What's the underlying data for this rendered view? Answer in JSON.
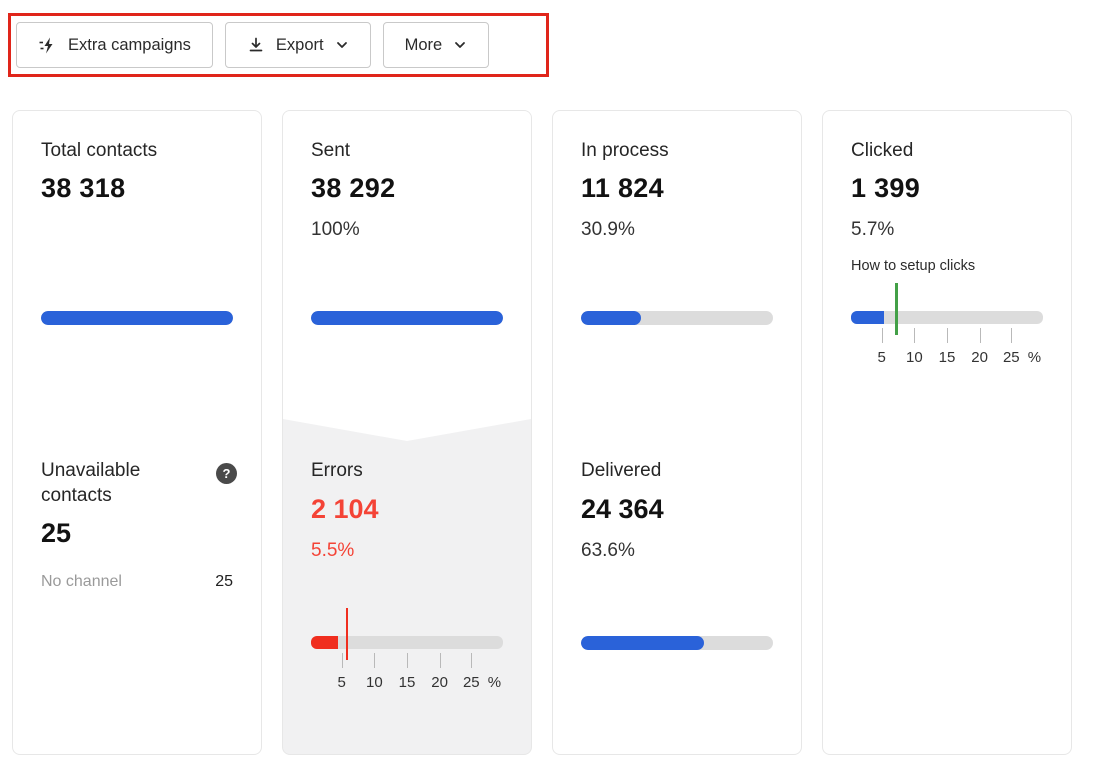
{
  "toolbar": {
    "buttons": [
      {
        "label": "Extra campaigns",
        "icon": "campaign-flash-icon"
      },
      {
        "label": "Export",
        "icon": "download-icon",
        "chevron": "chevron-down-icon"
      },
      {
        "label": "More",
        "chevron": "chevron-down-icon"
      }
    ]
  },
  "cards": {
    "total_contacts": {
      "title": "Total contacts",
      "value": "38 318",
      "bar": {
        "fill": 100
      }
    },
    "unavailable_contacts": {
      "title": "Unavailable contacts",
      "value": "25",
      "help_icon": "question-help-icon",
      "rows": [
        {
          "label": "No channel",
          "value": "25"
        }
      ]
    },
    "sent": {
      "title": "Sent",
      "value": "38 292",
      "percent": "100%",
      "bar": {
        "fill": 100
      }
    },
    "errors": {
      "title": "Errors",
      "value": "2 104",
      "percent": "5.5%",
      "bar": {
        "fill": 14,
        "marker": 18
      },
      "axis": [
        "5",
        "10",
        "15",
        "20",
        "25",
        "%"
      ]
    },
    "in_process": {
      "title": "In process",
      "value": "11 824",
      "percent": "30.9%",
      "bar": {
        "fill": 31
      }
    },
    "delivered": {
      "title": "Delivered",
      "value": "24 364",
      "percent": "63.6%",
      "bar": {
        "fill": 64
      }
    },
    "clicked": {
      "title": "Clicked",
      "value": "1 399",
      "percent": "5.7%",
      "link": "How to setup clicks",
      "bar": {
        "fill": 17,
        "marker": 23
      },
      "axis": [
        "5",
        "10",
        "15",
        "20",
        "25",
        "%"
      ]
    }
  },
  "colors": {
    "accent_blue": "#2a62d9",
    "error_red": "#f44336",
    "marker_green": "#43a047",
    "track_grey": "#dcdcdc",
    "section_grey": "#f1f1f2",
    "annotation_red": "#e0251a"
  }
}
